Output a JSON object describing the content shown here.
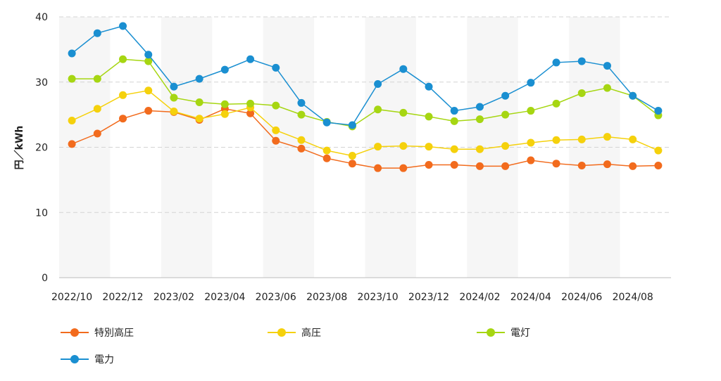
{
  "chart_data": {
    "type": "line",
    "ylabel": "円／kWh",
    "ylim": [
      0,
      40
    ],
    "yticks": [
      0,
      10,
      20,
      30,
      40
    ],
    "grid": true,
    "legend_position": "bottom",
    "x": [
      "2022/10",
      "2022/11",
      "2022/12",
      "2023/01",
      "2023/02",
      "2023/03",
      "2023/04",
      "2023/05",
      "2023/06",
      "2023/07",
      "2023/08",
      "2023/09",
      "2023/10",
      "2023/11",
      "2023/12",
      "2024/01",
      "2024/02",
      "2024/03",
      "2024/04",
      "2024/05",
      "2024/06",
      "2024/07",
      "2024/08",
      "2024/09"
    ],
    "xtick_labels": [
      "2022/10",
      "2022/12",
      "2023/02",
      "2023/04",
      "2023/06",
      "2023/08",
      "2023/10",
      "2023/12",
      "2024/02",
      "2024/04",
      "2024/06",
      "2024/08"
    ],
    "series": [
      {
        "name": "特別高圧",
        "color": "#f26b1d",
        "values": [
          20.5,
          22.1,
          24.4,
          25.6,
          25.4,
          24.2,
          25.9,
          25.2,
          21.0,
          19.8,
          18.3,
          17.5,
          16.8,
          16.8,
          17.3,
          17.3,
          17.1,
          17.1,
          18.0,
          17.5,
          17.2,
          17.4,
          17.1,
          17.2
        ]
      },
      {
        "name": "高圧",
        "color": "#f5d10c",
        "values": [
          24.1,
          25.9,
          28.0,
          28.7,
          25.5,
          24.4,
          25.1,
          26.1,
          22.6,
          21.1,
          19.5,
          18.7,
          20.1,
          20.2,
          20.1,
          19.7,
          19.7,
          20.2,
          20.7,
          21.1,
          21.2,
          21.6,
          21.2,
          19.5
        ]
      },
      {
        "name": "電灯",
        "color": "#a6d612",
        "values": [
          30.5,
          30.5,
          33.5,
          33.2,
          27.6,
          26.9,
          26.6,
          26.7,
          26.4,
          25.0,
          23.9,
          23.2,
          25.8,
          25.3,
          24.7,
          24.0,
          24.3,
          25.0,
          25.6,
          26.7,
          28.3,
          29.1,
          27.9,
          24.9
        ]
      },
      {
        "name": "電力",
        "color": "#1a8fd1",
        "values": [
          34.4,
          37.5,
          38.6,
          34.2,
          29.3,
          30.5,
          31.9,
          33.5,
          32.2,
          26.8,
          23.8,
          23.4,
          29.7,
          32.0,
          29.3,
          25.6,
          26.2,
          27.9,
          29.9,
          33.0,
          33.2,
          32.5,
          27.9,
          25.6
        ]
      }
    ]
  }
}
